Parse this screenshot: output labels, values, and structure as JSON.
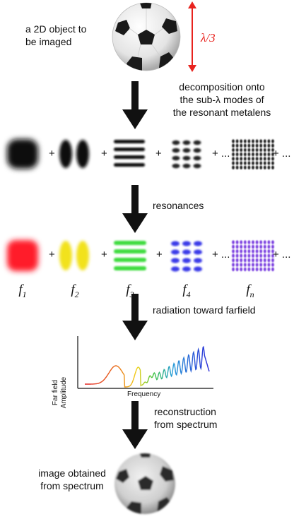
{
  "object_caption": "a 2D object to be imaged",
  "object_caption_line1": "a 2D object to",
  "object_caption_line2": "be imaged",
  "size_label": "λ/3",
  "step1": {
    "line1": "decomposition onto",
    "line2": "the sub-λ modes of",
    "line3": "the resonant metalens"
  },
  "step2": {
    "text": "resonances"
  },
  "step3": {
    "text": "radiation toward farfield"
  },
  "step4": {
    "line1": "reconstruction",
    "line2": "from spectrum"
  },
  "result_caption_line1": "image obtained",
  "result_caption_line2": "from spectrum",
  "operators": {
    "plus": "+",
    "plus_dots": "+ ...",
    "dots_plus": "...+ ..."
  },
  "modes": [
    {
      "label": "f",
      "sub": "1",
      "color": "#ff1a2a"
    },
    {
      "label": "f",
      "sub": "2",
      "color": "#f2e21a"
    },
    {
      "label": "f",
      "sub": "3",
      "color": "#3ddc3d"
    },
    {
      "label": "f",
      "sub": "4",
      "color": "#3a3ae8"
    },
    {
      "label": "f",
      "sub": "n",
      "color": "#7a3fe0"
    }
  ],
  "spectrum": {
    "ylabel_line1": "Far field",
    "ylabel_line2": "Amplitude",
    "xlabel": "Frequency"
  },
  "colors": {
    "arrow": "#111111",
    "size_arrow": "#e8231e",
    "mode_gray": "#222222"
  }
}
